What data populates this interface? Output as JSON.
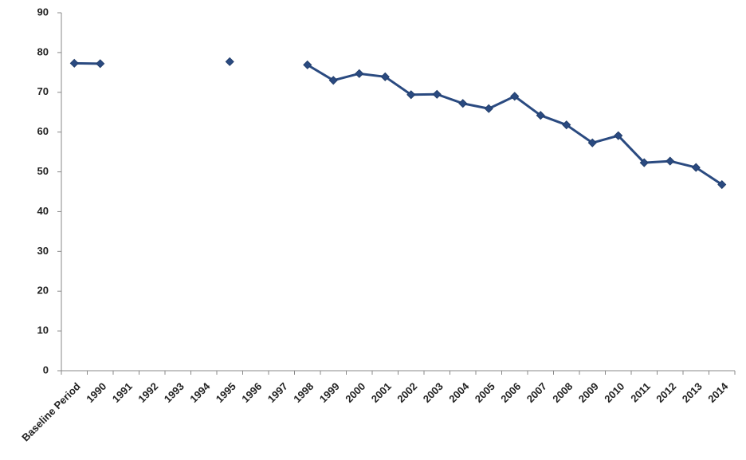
{
  "chart_data": {
    "type": "line",
    "categories": [
      "Baseline Period",
      "1990",
      "1991",
      "1992",
      "1993",
      "1994",
      "1995",
      "1996",
      "1997",
      "1998",
      "1999",
      "2000",
      "2001",
      "2002",
      "2003",
      "2004",
      "2005",
      "2006",
      "2007",
      "2008",
      "2009",
      "2010",
      "2011",
      "2012",
      "2013",
      "2014"
    ],
    "series": [
      {
        "color": "#2a4a80",
        "values": [
          77.3,
          77.2,
          null,
          null,
          null,
          null,
          77.7,
          null,
          null,
          76.9,
          73.0,
          74.7,
          73.9,
          69.4,
          69.5,
          67.2,
          65.9,
          69.0,
          64.2,
          61.8,
          57.3,
          59.1,
          52.3,
          52.7,
          51.1,
          46.8
        ]
      }
    ],
    "ylim": [
      0,
      90
    ],
    "yticks": [
      0,
      10,
      20,
      30,
      40,
      50,
      60,
      70,
      80,
      90
    ],
    "grid": false
  }
}
